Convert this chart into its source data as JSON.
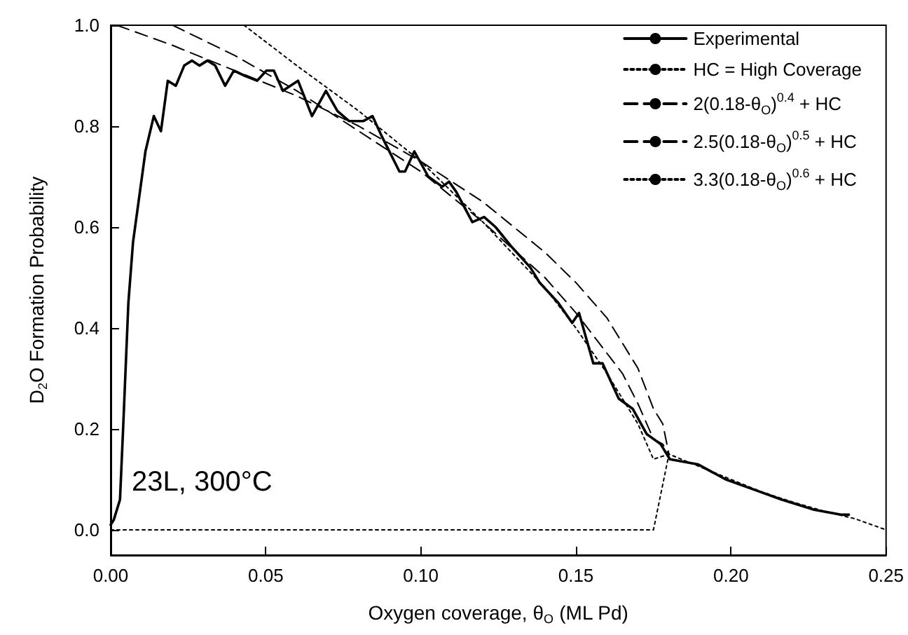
{
  "chart_data": {
    "type": "line",
    "xlabel": "Oxygen coverage, θ$_{O}$ (ML Pd)",
    "ylabel": "D$_{2}$O Formation Probability",
    "annotations": [
      "23L, 300°C"
    ],
    "xlim": [
      0,
      0.25
    ],
    "xticks": [
      {
        "value": 0,
        "label": "0.00"
      },
      {
        "value": 0.05,
        "label": "0.05"
      },
      {
        "value": 0.1,
        "label": "0.10"
      },
      {
        "value": 0.15,
        "label": "0.15"
      },
      {
        "value": 0.2,
        "label": "0.20"
      },
      {
        "value": 0.25,
        "label": "0.25"
      }
    ],
    "ylim": [
      -0.05,
      1.0
    ],
    "yticks": [
      {
        "value": 0,
        "label": "0.0"
      },
      {
        "value": 0.2,
        "label": "0.2"
      },
      {
        "value": 0.4,
        "label": "0.4"
      },
      {
        "value": 0.6,
        "label": "0.6"
      },
      {
        "value": 0.8,
        "label": "0.8"
      },
      {
        "value": 1.0,
        "label": "1.0"
      }
    ],
    "legend": "top right",
    "marker": "none",
    "series": [
      {
        "name": "Experimental",
        "color": "#000000",
        "line_style": "solid",
        "x": [
          0,
          0.001,
          0.003,
          0.004,
          0.0057,
          0.0072,
          0.0112,
          0.0139,
          0.0162,
          0.0184,
          0.021,
          0.0237,
          0.0262,
          0.0286,
          0.0312,
          0.0337,
          0.0369,
          0.0397,
          0.0432,
          0.0472,
          0.0502,
          0.0526,
          0.0555,
          0.0604,
          0.0649,
          0.0694,
          0.0731,
          0.0769,
          0.0814,
          0.0844,
          0.0874,
          0.0931,
          0.0949,
          0.0979,
          0.1024,
          0.1069,
          0.1091,
          0.1114,
          0.1166,
          0.1204,
          0.1241,
          0.1294,
          0.1353,
          0.1383,
          0.1443,
          0.1488,
          0.151,
          0.1556,
          0.1586,
          0.1638,
          0.1683,
          0.1728,
          0.1773,
          0.1803,
          0.1893,
          0.1983,
          0.2073,
          0.2163,
          0.2268,
          0.2357,
          0.238
        ],
        "values": [
          0.01,
          0.02,
          0.06,
          0.2,
          0.45,
          0.57,
          0.75,
          0.82,
          0.79,
          0.89,
          0.88,
          0.92,
          0.93,
          0.92,
          0.93,
          0.92,
          0.88,
          0.91,
          0.9,
          0.89,
          0.91,
          0.91,
          0.87,
          0.89,
          0.82,
          0.87,
          0.83,
          0.81,
          0.81,
          0.82,
          0.78,
          0.71,
          0.71,
          0.75,
          0.7,
          0.68,
          0.69,
          0.67,
          0.61,
          0.62,
          0.6,
          0.56,
          0.52,
          0.49,
          0.45,
          0.41,
          0.43,
          0.33,
          0.33,
          0.26,
          0.24,
          0.19,
          0.17,
          0.14,
          0.13,
          0.1,
          0.08,
          0.06,
          0.04,
          0.03,
          0.03
        ]
      },
      {
        "name": "HC = High Coverage",
        "color": "#000000",
        "line_style": "dotted",
        "x": [
          0,
          0.175,
          0.18,
          0.19,
          0.2,
          0.21,
          0.22,
          0.23,
          0.24,
          0.25
        ],
        "values": [
          0,
          0,
          0.15,
          0.125,
          0.1,
          0.075,
          0.055,
          0.037,
          0.022,
          0
        ]
      },
      {
        "name": "2(0.18-θ$_{O}$)$^{0.4}$ + HC",
        "color": "#000000",
        "line_style": "dashed",
        "x": [
          0.002,
          0.02,
          0.04,
          0.06,
          0.08,
          0.1,
          0.12,
          0.14,
          0.15,
          0.16,
          0.165,
          0.17,
          0.175,
          0.178,
          0.18
        ],
        "values": [
          1.0,
          0.96,
          0.91,
          0.86,
          0.8,
          0.73,
          0.65,
          0.55,
          0.49,
          0.42,
          0.37,
          0.32,
          0.24,
          0.21,
          0.15
        ]
      },
      {
        "name": "2.5(0.18-θ$_{O}$)$^{0.5}$ + HC",
        "color": "#000000",
        "line_style": "dashed",
        "x": [
          0.02,
          0.04,
          0.06,
          0.08,
          0.1,
          0.12,
          0.14,
          0.15,
          0.16,
          0.165,
          0.17,
          0.175,
          0.178,
          0.18
        ],
        "values": [
          1.0,
          0.94,
          0.87,
          0.79,
          0.71,
          0.61,
          0.5,
          0.43,
          0.35,
          0.31,
          0.25,
          0.18,
          0.17,
          0.15
        ]
      },
      {
        "name": "3.3(0.18-θ$_{O}$)$^{0.6}$ + HC",
        "color": "#000000",
        "line_style": "dotted",
        "x": [
          0.043,
          0.06,
          0.08,
          0.1,
          0.12,
          0.14,
          0.15,
          0.16,
          0.17,
          0.175,
          0.18
        ],
        "values": [
          1.0,
          0.92,
          0.83,
          0.73,
          0.61,
          0.48,
          0.4,
          0.31,
          0.21,
          0.14,
          0.15
        ]
      }
    ]
  }
}
